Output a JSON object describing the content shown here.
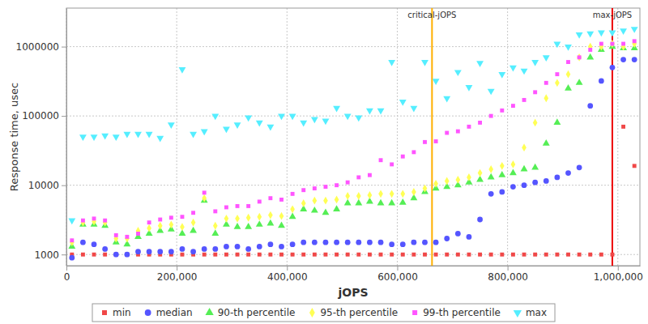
{
  "chart_data": {
    "type": "scatter",
    "x_label": "jOPS",
    "y_label": "Response time, usec",
    "log": "y",
    "grid": true,
    "legend": "bottom",
    "xlim": [
      0,
      1040000
    ],
    "ylim": [
      690,
      3600000
    ],
    "xticks": [
      0,
      {
        "value": 200000,
        "label": "200,000"
      },
      {
        "value": 400000,
        "label": "400,000"
      },
      {
        "value": 600000,
        "label": "600,000"
      },
      {
        "value": 800000,
        "label": "800,000"
      },
      {
        "value": 1000000,
        "label": "1,000,000"
      }
    ],
    "yticks": [
      1000,
      10000,
      100000,
      1000000
    ],
    "annotations": [
      {
        "text": "critical-jOPS",
        "x": 663000,
        "color": "#ffb000"
      },
      {
        "text": "max-jOPS",
        "x": 990000,
        "color": "#ee0000"
      }
    ],
    "x": [
      10000,
      30000,
      50000,
      70000,
      90000,
      110000,
      130000,
      150000,
      170000,
      190000,
      210000,
      230000,
      250000,
      270000,
      290000,
      310000,
      330000,
      350000,
      370000,
      390000,
      410000,
      430000,
      450000,
      470000,
      490000,
      510000,
      530000,
      550000,
      570000,
      590000,
      610000,
      630000,
      650000,
      670000,
      690000,
      710000,
      730000,
      750000,
      770000,
      790000,
      810000,
      830000,
      850000,
      870000,
      890000,
      910000,
      930000,
      950000,
      970000,
      990000,
      1010000,
      1030000
    ],
    "series": [
      {
        "name": "min",
        "color": "#f04848",
        "marker": "square",
        "values": [
          1000,
          1000,
          1000,
          1000,
          1000,
          1000,
          1000,
          1000,
          1000,
          1000,
          1000,
          1000,
          1000,
          1000,
          1000,
          1000,
          1000,
          1000,
          1000,
          1000,
          1000,
          1000,
          1000,
          1000,
          1000,
          1000,
          1000,
          1000,
          1000,
          1000,
          1000,
          1000,
          1000,
          1000,
          1000,
          1000,
          1000,
          1000,
          1000,
          1000,
          1000,
          1000,
          1000,
          1000,
          1000,
          1000,
          1000,
          1000,
          1000,
          1000,
          70000,
          19000
        ]
      },
      {
        "name": "median",
        "color": "#5555ff",
        "marker": "circle",
        "values": [
          900,
          1500,
          1400,
          1200,
          1000,
          1000,
          1100,
          1100,
          1100,
          1100,
          1200,
          1100,
          1200,
          1200,
          1300,
          1300,
          1200,
          1300,
          1400,
          1300,
          1400,
          1500,
          1500,
          1500,
          1500,
          1500,
          1500,
          1500,
          1500,
          1400,
          1400,
          1500,
          1500,
          1500,
          1700,
          2000,
          1800,
          3200,
          7500,
          8000,
          9500,
          10000,
          11000,
          11500,
          13000,
          15000,
          18000,
          140000,
          320000,
          500000,
          650000,
          650000
        ]
      },
      {
        "name": "90-th percentile",
        "color": "#55ee55",
        "marker": "triangle",
        "values": [
          1300,
          2700,
          2700,
          2600,
          1500,
          1400,
          1800,
          2000,
          2200,
          2300,
          2000,
          2200,
          6000,
          2000,
          2700,
          2500,
          2500,
          2700,
          2800,
          2600,
          3500,
          4500,
          4300,
          4000,
          4500,
          5500,
          5500,
          5800,
          5500,
          5500,
          5600,
          6500,
          8000,
          9000,
          9500,
          10000,
          11000,
          12000,
          13000,
          14000,
          15000,
          17000,
          18000,
          40000,
          80000,
          250000,
          300000,
          700000,
          900000,
          1000000,
          950000,
          950000
        ]
      },
      {
        "name": "95-th percentile",
        "color": "#ffff55",
        "marker": "diamond",
        "values": [
          1500,
          2900,
          3000,
          2900,
          1700,
          1700,
          2200,
          2400,
          2600,
          2700,
          2500,
          2900,
          6500,
          2600,
          3300,
          3300,
          3400,
          3500,
          3700,
          3600,
          4500,
          5500,
          6000,
          6000,
          6200,
          7000,
          7000,
          7200,
          7500,
          7500,
          7500,
          8000,
          9000,
          10500,
          11500,
          12000,
          13000,
          15000,
          17000,
          19000,
          20000,
          35000,
          80000,
          180000,
          300000,
          400000,
          700000,
          1000000,
          1000000,
          1100000,
          1000000,
          1100000
        ]
      },
      {
        "name": "99-th percentile",
        "color": "#ff55ff",
        "marker": "square",
        "values": [
          1600,
          3100,
          3300,
          3100,
          1900,
          1800,
          2000,
          2900,
          3200,
          3400,
          3500,
          4000,
          7800,
          4200,
          4800,
          5000,
          5000,
          5800,
          6500,
          6200,
          7500,
          8500,
          9000,
          9500,
          10000,
          11000,
          13000,
          14000,
          23000,
          20000,
          26000,
          30000,
          42000,
          43000,
          57000,
          60000,
          70000,
          80000,
          100000,
          120000,
          140000,
          170000,
          220000,
          300000,
          400000,
          600000,
          700000,
          900000,
          1100000,
          1100000,
          1100000,
          1200000
        ]
      },
      {
        "name": "max",
        "color": "#55eeff",
        "marker": "triangle-down",
        "values": [
          3100,
          50000,
          50000,
          52000,
          50000,
          55000,
          55000,
          55000,
          48000,
          75000,
          470000,
          55000,
          60000,
          100000,
          65000,
          75000,
          95000,
          80000,
          70000,
          100000,
          100000,
          80000,
          90000,
          85000,
          130000,
          100000,
          95000,
          120000,
          120000,
          600000,
          160000,
          130000,
          600000,
          320000,
          180000,
          430000,
          260000,
          580000,
          230000,
          400000,
          500000,
          450000,
          600000,
          700000,
          1100000,
          1000000,
          1500000,
          1550000,
          1600000,
          1600000,
          1700000,
          1800000
        ]
      }
    ]
  }
}
